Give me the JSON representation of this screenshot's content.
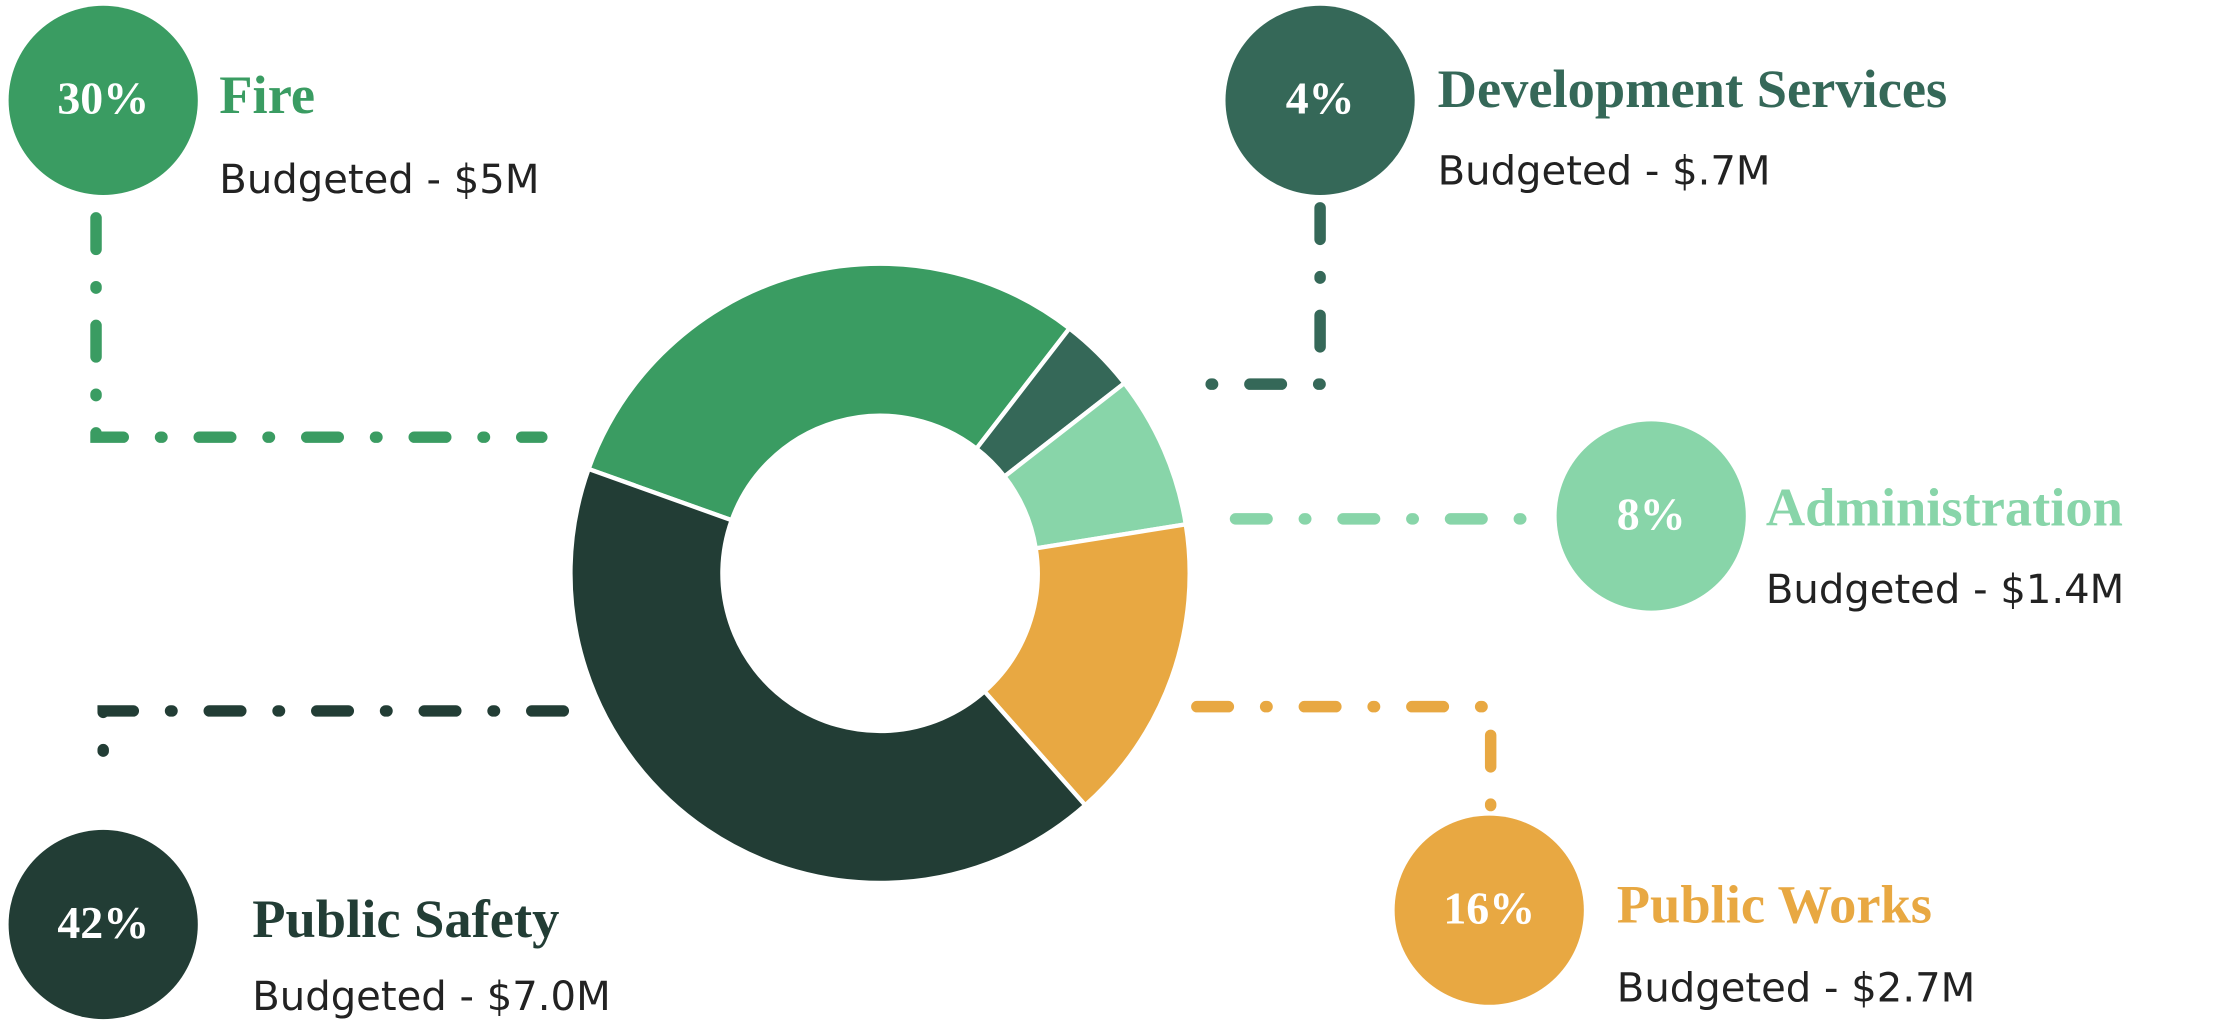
{
  "chart_data": {
    "type": "pie",
    "donut": true,
    "categories": [
      "Fire",
      "Development Services",
      "Administration",
      "Public Works",
      "Public Safety"
    ],
    "values": [
      30,
      4,
      8,
      16,
      42
    ],
    "value_labels": [
      "30%",
      "4%",
      "8%",
      "16%",
      "42%"
    ],
    "budget_labels": [
      "Budgeted - $5M",
      "Budgeted - $.7M",
      "Budgeted - $1.4M",
      "Budgeted - $2.7M",
      "Budgeted - $7.0M"
    ],
    "colors": [
      "#3a9c62",
      "#356858",
      "#88d5a9",
      "#e8a842",
      "#223d35"
    ]
  }
}
